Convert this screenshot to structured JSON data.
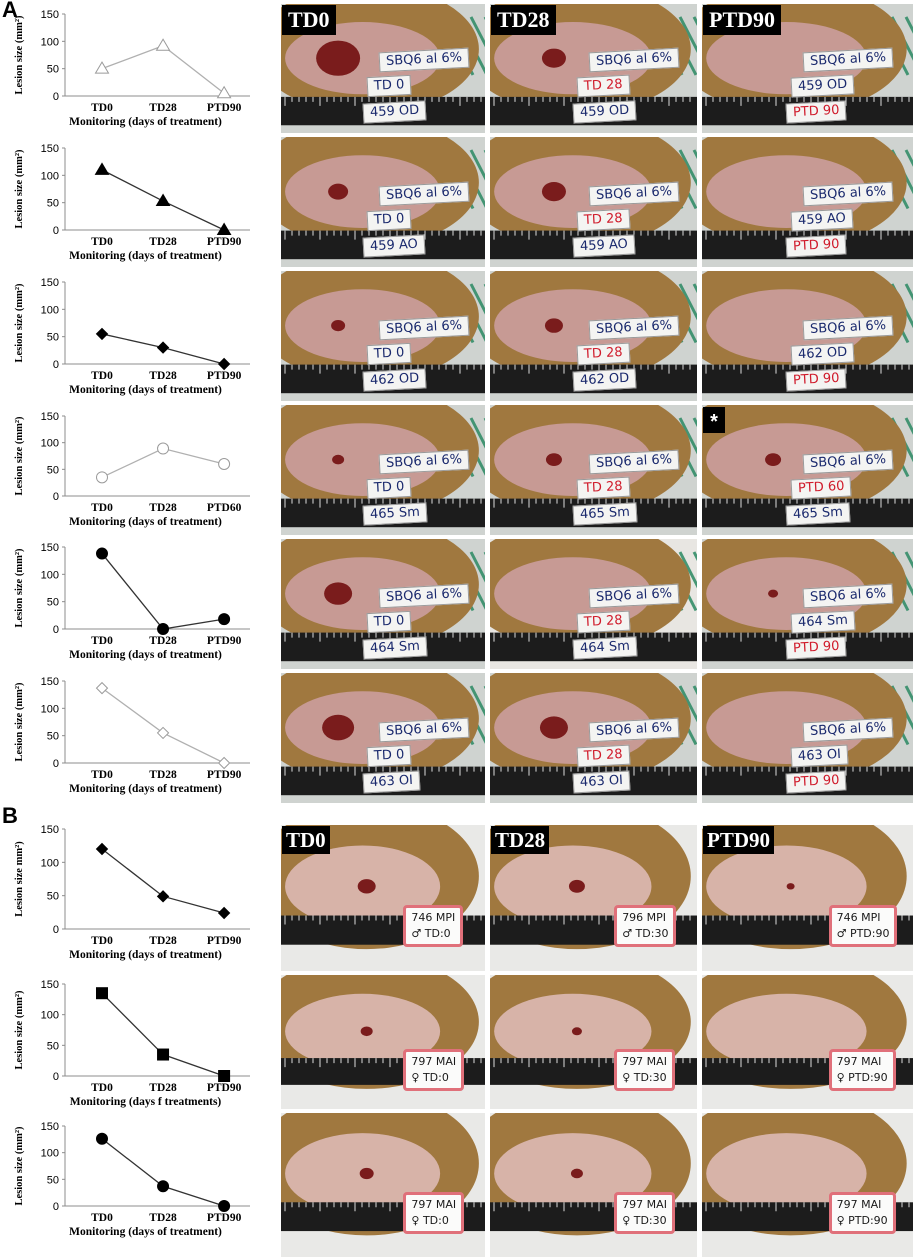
{
  "panels": [
    {
      "letter": "A"
    },
    {
      "letter": "B"
    }
  ],
  "column_labels": {
    "A": [
      "TD0",
      "TD28",
      "PTD90"
    ],
    "B": [
      "TD0",
      "TD28",
      "PTD90"
    ]
  },
  "photo_labels": {
    "A": [
      [
        [
          "SBQ6 al 6%",
          "TD 0",
          "459 OD"
        ],
        [
          "SBQ6 al 6%",
          "TD 28",
          "459 OD"
        ],
        [
          "SBQ6 al 6%",
          "459 OD",
          "PTD 90"
        ]
      ],
      [
        [
          "SBQ6 al 6%",
          "TD 0",
          "459 AO"
        ],
        [
          "SBQ6 al 6%",
          "TD 28",
          "459 AO"
        ],
        [
          "SBQ6 al 6%",
          "459 AO",
          "PTD 90"
        ]
      ],
      [
        [
          "SBQ6 al 6%",
          "TD 0",
          "462 OD"
        ],
        [
          "SBQ6 al 6%",
          "TD 28",
          "462 OD"
        ],
        [
          "SBQ6 al 6%",
          "462 OD",
          "PTD 90"
        ]
      ],
      [
        [
          "SBQ6 al 6%",
          "TD 0",
          "465 Sm"
        ],
        [
          "SBQ6 al 6%",
          "TD 28",
          "465 Sm"
        ],
        [
          "SBQ6 al 6%",
          "PTD 60",
          "465 Sm"
        ]
      ],
      [
        [
          "SBQ6 al 6%",
          "TD 0",
          "464 Sm"
        ],
        [
          "SBQ6 al 6%",
          "TD 28",
          "464 Sm"
        ],
        [
          "SBQ6 al 6%",
          "464 Sm",
          "PTD 90"
        ]
      ],
      [
        [
          "SBQ6 al 6%",
          "TD 0",
          "463 OI"
        ],
        [
          "SBQ6 al 6%",
          "TD 28",
          "463 OI"
        ],
        [
          "SBQ6 al 6%",
          "463 OI",
          "PTD 90"
        ]
      ]
    ],
    "B": [
      [
        [
          "746 MPI",
          "♂ TD:0"
        ],
        [
          "796 MPI",
          "♂ TD:30"
        ],
        [
          "746 MPI",
          "♂ PTD:90"
        ]
      ],
      [
        [
          "797 MAI",
          "♀ TD:0"
        ],
        [
          "797 MAI",
          "♀ TD:30"
        ],
        [
          "797 MAI",
          "♀ PTD:90"
        ]
      ],
      [
        [
          "797 MAI",
          "♀ TD:0"
        ],
        [
          "797 MAI",
          "♀ TD:30"
        ],
        [
          "797 MAI",
          "♀ PTD:90"
        ]
      ]
    ]
  },
  "asterisk": "*",
  "colors": {
    "line": "#555555",
    "axis": "#8c8c8c",
    "fur": "#a0783f",
    "skin": "#c79a94",
    "lesion": "#7a1c1c",
    "ruler": "#1c1c1c",
    "grid": "#2b8a63",
    "tag_red": "#d01c2c",
    "tag_blue": "#1b2a6e"
  },
  "chart_data": [
    {
      "type": "line",
      "panel": "A",
      "categories": [
        "TD0",
        "TD28",
        "PTD90"
      ],
      "values": [
        50,
        92,
        5
      ],
      "marker": "triangle-open",
      "xlabel": "Monitoring (days of treatment)",
      "ylabel": "Lesion size (mm²)",
      "ylim": [
        0,
        150
      ],
      "yticks": [
        0,
        50,
        100,
        150
      ]
    },
    {
      "type": "line",
      "panel": "A",
      "categories": [
        "TD0",
        "TD28",
        "PTD90"
      ],
      "values": [
        110,
        53,
        0
      ],
      "marker": "triangle",
      "xlabel": "Monitoring (days of treatment)",
      "ylabel": "Lesion size (mm²)",
      "ylim": [
        0,
        150
      ],
      "yticks": [
        0,
        50,
        100,
        150
      ]
    },
    {
      "type": "line",
      "panel": "A",
      "categories": [
        "TD0",
        "TD28",
        "PTD90"
      ],
      "values": [
        55,
        30,
        0
      ],
      "marker": "diamond",
      "xlabel": "Monitoring (days of treatment)",
      "ylabel": "Lesion size (mm²)",
      "ylim": [
        0,
        150
      ],
      "yticks": [
        0,
        50,
        100,
        150
      ]
    },
    {
      "type": "line",
      "panel": "A",
      "categories": [
        "TD0",
        "TD28",
        "PTD60"
      ],
      "values": [
        35,
        89,
        60
      ],
      "marker": "circle-open",
      "xlabel": "Monitoring (days of treatment)",
      "ylabel": "Lesion size (mm²)",
      "ylim": [
        0,
        150
      ],
      "yticks": [
        0,
        50,
        100,
        150
      ]
    },
    {
      "type": "line",
      "panel": "A",
      "categories": [
        "TD0",
        "TD28",
        "PTD90"
      ],
      "values": [
        138,
        0,
        18
      ],
      "marker": "circle",
      "xlabel": "Monitoring (days of treatment)",
      "ylabel": "Lesion size (mm²)",
      "ylim": [
        0,
        150
      ],
      "yticks": [
        0,
        50,
        100,
        150
      ]
    },
    {
      "type": "line",
      "panel": "A",
      "categories": [
        "TD0",
        "TD28",
        "PTD90"
      ],
      "values": [
        137,
        55,
        0
      ],
      "marker": "diamond-open",
      "xlabel": "Monitoring (days of treatment)",
      "ylabel": "Lesion size (mm²)",
      "ylim": [
        0,
        150
      ],
      "yticks": [
        0,
        50,
        100,
        150
      ]
    },
    {
      "type": "line",
      "panel": "B",
      "categories": [
        "TD0",
        "TD28",
        "PTD90"
      ],
      "values": [
        120,
        49,
        24
      ],
      "marker": "diamond",
      "xlabel": "Monitoring (days of treatment)",
      "ylabel": "Lesion size mm²)",
      "ylim": [
        0,
        150
      ],
      "yticks": [
        0,
        50,
        100,
        150
      ]
    },
    {
      "type": "line",
      "panel": "B",
      "categories": [
        "TD0",
        "TD28",
        "PTD90"
      ],
      "values": [
        135,
        35,
        0
      ],
      "marker": "square",
      "xlabel": "Monitoring (days f treatments)",
      "ylabel": "Lesion size (mm²)",
      "ylim": [
        0,
        150
      ],
      "yticks": [
        0,
        50,
        100,
        150
      ]
    },
    {
      "type": "line",
      "panel": "B",
      "categories": [
        "TD0",
        "TD28",
        "PTD90"
      ],
      "values": [
        126,
        37,
        0
      ],
      "marker": "circle",
      "xlabel": "Monitoring (days of treatment)",
      "ylabel": "Lesion size (mm²)",
      "ylim": [
        0,
        150
      ],
      "yticks": [
        0,
        50,
        100,
        150
      ]
    }
  ]
}
